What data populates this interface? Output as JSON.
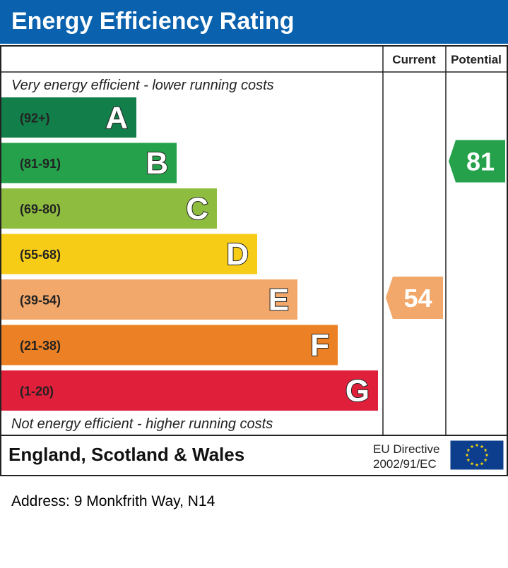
{
  "header": {
    "title": "Energy Efficiency Rating"
  },
  "chart_data": {
    "type": "bar",
    "title": "Energy Efficiency Rating",
    "columns": {
      "current": "Current",
      "potential": "Potential"
    },
    "top_note": "Very energy efficient - lower running costs",
    "bottom_note": "Not energy efficient - higher running costs",
    "bands": [
      {
        "letter": "A",
        "range": "(92+)",
        "color": "#127e4a"
      },
      {
        "letter": "B",
        "range": "(81-91)",
        "color": "#24a14a"
      },
      {
        "letter": "C",
        "range": "(69-80)",
        "color": "#8dbc3f"
      },
      {
        "letter": "D",
        "range": "(55-68)",
        "color": "#f6cc17"
      },
      {
        "letter": "E",
        "range": "(39-54)",
        "color": "#f2a86a"
      },
      {
        "letter": "F",
        "range": "(21-38)",
        "color": "#ec8024"
      },
      {
        "letter": "G",
        "range": "(1-20)",
        "color": "#e0203b"
      }
    ],
    "current": {
      "value": 54,
      "band": "E",
      "color": "#f2a86a"
    },
    "potential": {
      "value": 81,
      "band": "B",
      "color": "#24a14a"
    }
  },
  "footer": {
    "region": "England, Scotland & Wales",
    "directive_line1": "EU Directive",
    "directive_line2": "2002/91/EC",
    "flag_icon": "eu-flag-icon",
    "flag_color": "#0d3e8e",
    "star_color": "#ffdd00"
  },
  "address": "Address: 9 Monkfrith Way, N14"
}
